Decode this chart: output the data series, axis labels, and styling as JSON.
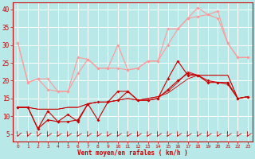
{
  "bg_color": "#b8e8e8",
  "grid_color": "#ffffff",
  "line_color_dark": "#cc0000",
  "line_color_light": "#ff9999",
  "xlabel": "Vent moyen/en rafales ( km/h )",
  "ylabel_ticks": [
    5,
    10,
    15,
    20,
    25,
    30,
    35,
    40
  ],
  "xlim": [
    -0.5,
    23.5
  ],
  "ylim": [
    3,
    42
  ],
  "xticks": [
    0,
    1,
    2,
    3,
    4,
    5,
    6,
    7,
    8,
    9,
    10,
    11,
    12,
    13,
    14,
    15,
    16,
    17,
    18,
    19,
    20,
    21,
    22,
    23
  ],
  "series_light": [
    [
      30.5,
      19.5,
      20.5,
      20.5,
      17.0,
      17.0,
      26.5,
      26.0,
      23.5,
      23.5,
      30.0,
      23.0,
      23.5,
      25.5,
      25.5,
      34.5,
      34.5,
      37.5,
      40.5,
      38.5,
      39.5,
      30.5,
      26.5,
      26.5
    ],
    [
      30.5,
      19.5,
      20.5,
      17.5,
      17.0,
      17.0,
      22.0,
      26.0,
      23.5,
      23.5,
      23.5,
      23.0,
      23.5,
      25.5,
      25.5,
      30.0,
      34.5,
      37.5,
      38.0,
      38.5,
      37.5,
      30.5,
      26.5,
      26.5
    ]
  ],
  "series_dark_thin": [
    [
      12.5,
      12.5,
      12.0,
      12.0,
      12.0,
      12.5,
      12.5,
      13.5,
      14.0,
      14.0,
      14.5,
      15.0,
      14.5,
      15.0,
      15.5,
      16.5,
      18.5,
      20.5,
      21.5,
      21.5,
      21.5,
      21.5,
      15.0,
      15.5
    ],
    [
      12.5,
      12.5,
      12.0,
      12.0,
      12.0,
      12.5,
      12.5,
      13.5,
      14.0,
      14.0,
      14.5,
      15.0,
      14.5,
      15.0,
      15.5,
      17.0,
      19.5,
      22.5,
      21.5,
      21.5,
      21.5,
      21.5,
      15.0,
      15.5
    ]
  ],
  "series_dark_thick": [
    [
      12.5,
      12.5,
      6.5,
      11.5,
      8.5,
      10.5,
      8.5,
      13.5,
      14.0,
      14.0,
      17.0,
      17.0,
      14.5,
      14.5,
      15.0,
      20.5,
      25.5,
      21.5,
      21.5,
      19.5,
      19.5,
      19.5,
      15.0,
      15.5
    ],
    [
      12.5,
      12.5,
      6.5,
      9.0,
      8.5,
      8.5,
      9.0,
      13.5,
      9.0,
      14.0,
      14.5,
      17.0,
      14.5,
      14.5,
      15.0,
      17.5,
      20.0,
      22.0,
      21.5,
      20.0,
      19.5,
      19.0,
      15.0,
      15.5
    ]
  ]
}
